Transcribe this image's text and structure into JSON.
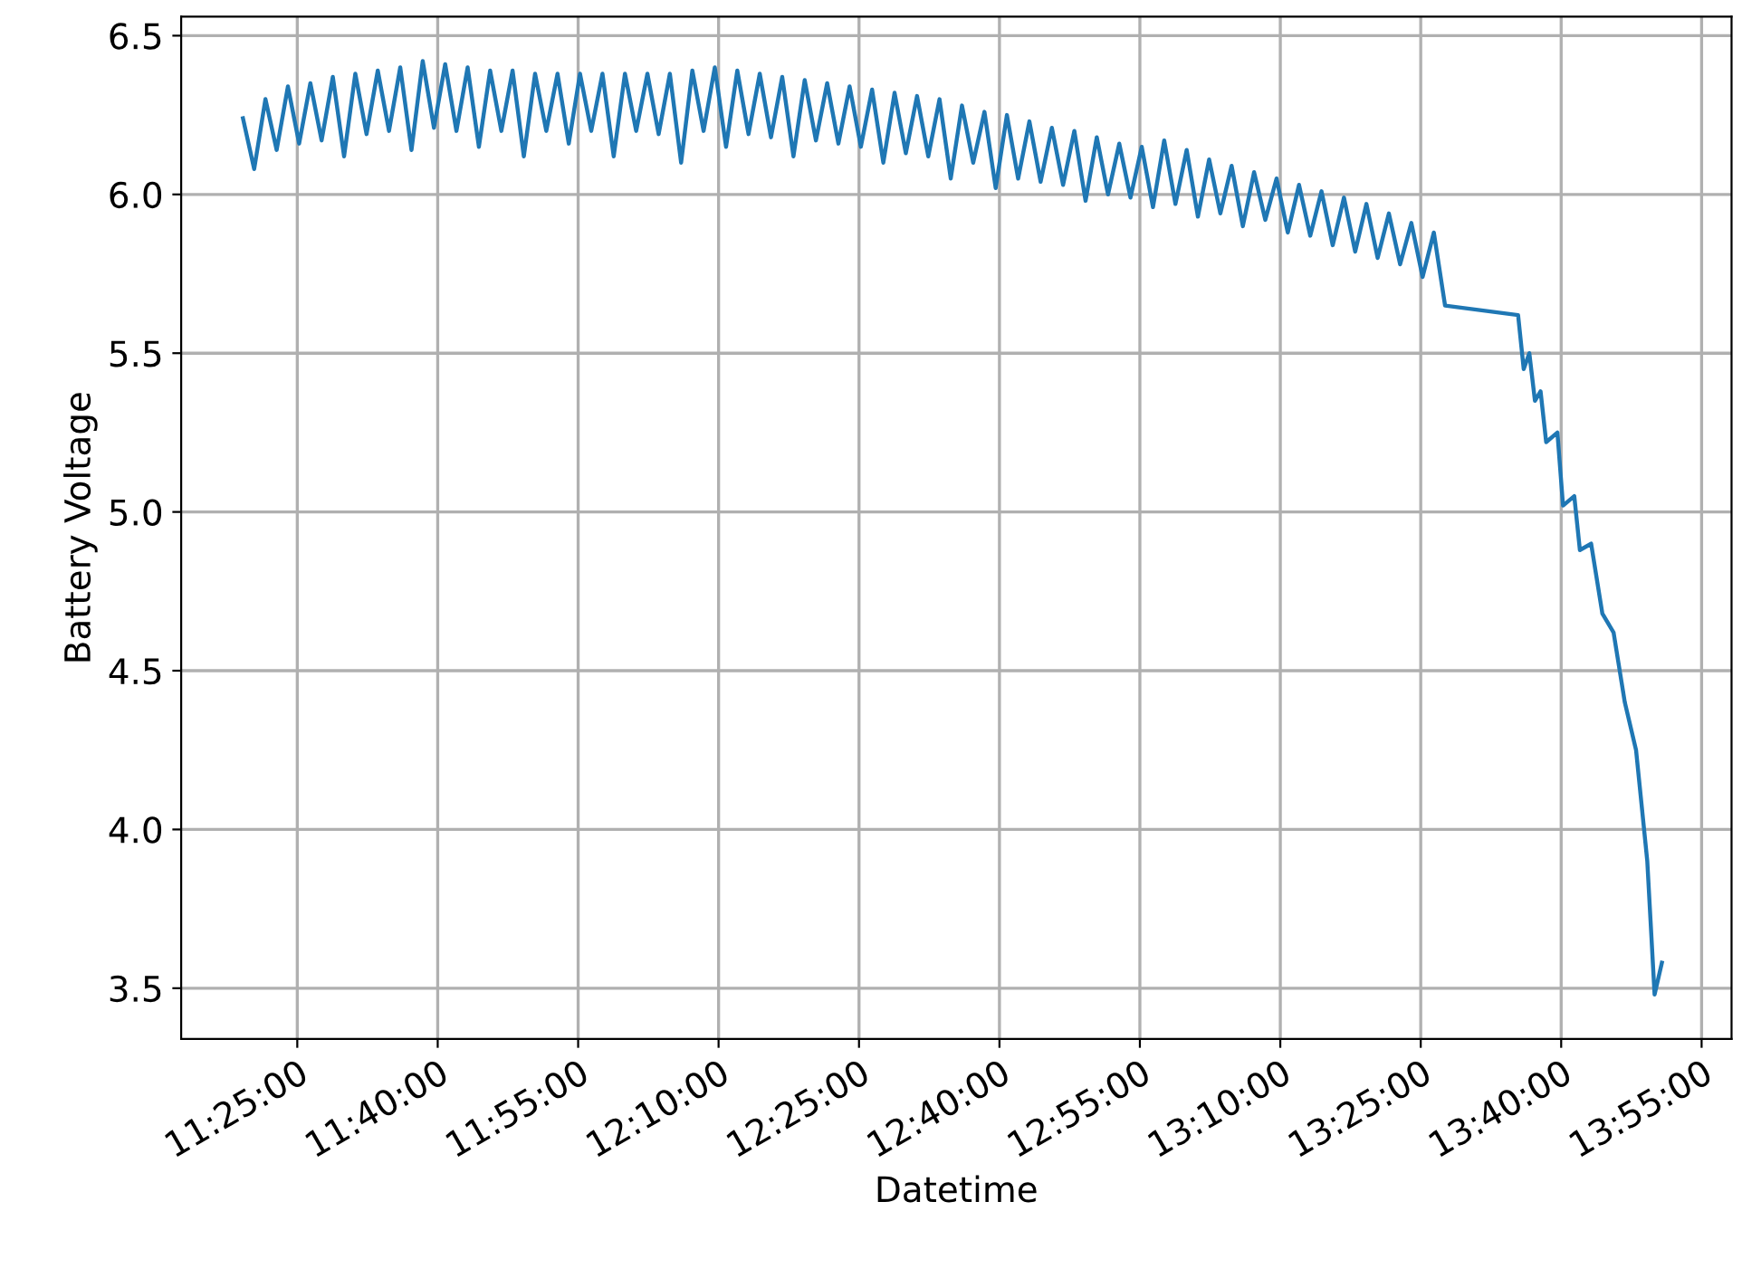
{
  "chart_data": {
    "type": "line",
    "xlabel": "Datetime",
    "ylabel": "Battery Voltage",
    "xlim": [
      11.21,
      13.97
    ],
    "ylim": [
      3.34,
      6.56
    ],
    "xticks": [
      {
        "value": 11.4167,
        "label": "11:25:00"
      },
      {
        "value": 11.6667,
        "label": "11:40:00"
      },
      {
        "value": 11.9167,
        "label": "11:55:00"
      },
      {
        "value": 12.1667,
        "label": "12:10:00"
      },
      {
        "value": 12.4167,
        "label": "12:25:00"
      },
      {
        "value": 12.6667,
        "label": "12:40:00"
      },
      {
        "value": 12.9167,
        "label": "12:55:00"
      },
      {
        "value": 13.1667,
        "label": "13:10:00"
      },
      {
        "value": 13.4167,
        "label": "13:25:00"
      },
      {
        "value": 13.6667,
        "label": "13:40:00"
      },
      {
        "value": 13.9167,
        "label": "13:55:00"
      }
    ],
    "yticks": [
      {
        "value": 3.5,
        "label": "3.5"
      },
      {
        "value": 4.0,
        "label": "4.0"
      },
      {
        "value": 4.5,
        "label": "4.5"
      },
      {
        "value": 5.0,
        "label": "5.0"
      },
      {
        "value": 5.5,
        "label": "5.5"
      },
      {
        "value": 6.0,
        "label": "6.0"
      },
      {
        "value": 6.5,
        "label": "6.5"
      }
    ],
    "grid": true,
    "series": [
      {
        "color": "#1f77b4",
        "x": [
          11.32,
          11.34,
          11.36,
          11.38,
          11.4,
          11.42,
          11.44,
          11.46,
          11.48,
          11.5,
          11.52,
          11.54,
          11.56,
          11.58,
          11.6,
          11.62,
          11.64,
          11.66,
          11.68,
          11.7,
          11.72,
          11.74,
          11.76,
          11.78,
          11.8,
          11.82,
          11.84,
          11.86,
          11.88,
          11.9,
          11.92,
          11.94,
          11.96,
          11.98,
          12.0,
          12.02,
          12.04,
          12.06,
          12.08,
          12.1,
          12.12,
          12.14,
          12.16,
          12.18,
          12.2,
          12.22,
          12.24,
          12.26,
          12.28,
          12.3,
          12.32,
          12.34,
          12.36,
          12.38,
          12.4,
          12.42,
          12.44,
          12.46,
          12.48,
          12.5,
          12.52,
          12.54,
          12.56,
          12.58,
          12.6,
          12.62,
          12.64,
          12.66,
          12.68,
          12.7,
          12.72,
          12.74,
          12.76,
          12.78,
          12.8,
          12.82,
          12.84,
          12.86,
          12.88,
          12.9,
          12.92,
          12.94,
          12.96,
          12.98,
          13.0,
          13.02,
          13.04,
          13.06,
          13.08,
          13.1,
          13.12,
          13.14,
          13.16,
          13.18,
          13.2,
          13.22,
          13.24,
          13.26,
          13.28,
          13.3,
          13.32,
          13.34,
          13.36,
          13.38,
          13.4,
          13.42,
          13.44,
          13.46,
          13.59,
          13.6,
          13.61,
          13.62,
          13.63,
          13.64,
          13.66,
          13.67,
          13.69,
          13.7,
          13.72,
          13.74,
          13.76,
          13.78,
          13.8,
          13.82,
          13.833,
          13.846
        ],
        "values": [
          6.24,
          6.08,
          6.3,
          6.14,
          6.34,
          6.16,
          6.35,
          6.17,
          6.37,
          6.12,
          6.38,
          6.19,
          6.39,
          6.2,
          6.4,
          6.14,
          6.42,
          6.21,
          6.41,
          6.2,
          6.4,
          6.15,
          6.39,
          6.2,
          6.39,
          6.12,
          6.38,
          6.2,
          6.38,
          6.16,
          6.38,
          6.2,
          6.38,
          6.12,
          6.38,
          6.2,
          6.38,
          6.19,
          6.38,
          6.1,
          6.39,
          6.2,
          6.4,
          6.15,
          6.39,
          6.19,
          6.38,
          6.18,
          6.37,
          6.12,
          6.36,
          6.17,
          6.35,
          6.16,
          6.34,
          6.15,
          6.33,
          6.1,
          6.32,
          6.13,
          6.31,
          6.12,
          6.3,
          6.05,
          6.28,
          6.1,
          6.26,
          6.02,
          6.25,
          6.05,
          6.23,
          6.04,
          6.21,
          6.03,
          6.2,
          5.98,
          6.18,
          6.0,
          6.16,
          5.99,
          6.15,
          5.96,
          6.17,
          5.97,
          6.14,
          5.93,
          6.11,
          5.94,
          6.09,
          5.9,
          6.07,
          5.92,
          6.05,
          5.88,
          6.03,
          5.87,
          6.01,
          5.84,
          5.99,
          5.82,
          5.97,
          5.8,
          5.94,
          5.78,
          5.91,
          5.74,
          5.88,
          5.65,
          5.62,
          5.45,
          5.5,
          5.35,
          5.38,
          5.22,
          5.25,
          5.02,
          5.05,
          4.88,
          4.9,
          4.68,
          4.62,
          4.4,
          4.25,
          3.9,
          3.48,
          3.58
        ]
      }
    ]
  }
}
